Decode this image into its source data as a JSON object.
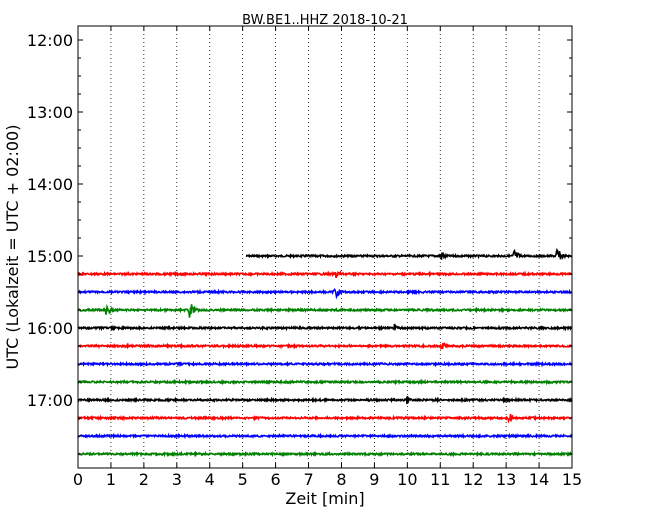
{
  "chart_data": {
    "type": "line",
    "title": "BW.BE1..HHZ 2018-10-21",
    "xlabel": "Zeit  [min]",
    "ylabel": "UTC (Lokalzeit = UTC + 02:00)",
    "xlim": [
      0,
      15
    ],
    "x_ticks": [
      "0",
      "1",
      "2",
      "3",
      "4",
      "5",
      "6",
      "7",
      "8",
      "9",
      "10",
      "11",
      "12",
      "13",
      "14",
      "15"
    ],
    "y_ticks": [
      "12:00",
      "13:00",
      "14:00",
      "15:00",
      "16:00",
      "17:00"
    ],
    "grid": "vertical dotted",
    "line_colors": [
      "#000000",
      "#ff0000",
      "#0000ff",
      "#008000"
    ],
    "traces": [
      {
        "start": "15:00",
        "from_min": 5.1,
        "to_min": 15,
        "color": "#000000",
        "events": [
          {
            "min": 11.0,
            "amp": 7
          },
          {
            "min": 13.25,
            "amp": 8
          },
          {
            "min": 14.55,
            "amp": 9
          }
        ]
      },
      {
        "start": "15:15",
        "from_min": 0,
        "to_min": 15,
        "color": "#ff0000",
        "events": [
          {
            "min": 7.85,
            "amp": 6
          }
        ]
      },
      {
        "start": "15:30",
        "from_min": 0,
        "to_min": 15,
        "color": "#0000ff",
        "events": [
          {
            "min": 7.8,
            "amp": 8
          }
        ]
      },
      {
        "start": "15:45",
        "from_min": 0,
        "to_min": 15,
        "color": "#008000",
        "events": [
          {
            "min": 0.85,
            "amp": 10
          },
          {
            "min": 3.4,
            "amp": 10
          }
        ]
      },
      {
        "start": "16:00",
        "from_min": 0,
        "to_min": 15,
        "color": "#000000",
        "events": [
          {
            "min": 9.6,
            "amp": 5
          }
        ]
      },
      {
        "start": "16:15",
        "from_min": 0,
        "to_min": 15,
        "color": "#ff0000",
        "events": [
          {
            "min": 11.05,
            "amp": 5
          }
        ]
      },
      {
        "start": "16:30",
        "from_min": 0,
        "to_min": 15,
        "color": "#0000ff",
        "events": []
      },
      {
        "start": "16:45",
        "from_min": 0,
        "to_min": 15,
        "color": "#008000",
        "events": []
      },
      {
        "start": "17:00",
        "from_min": 0,
        "to_min": 15,
        "color": "#000000",
        "events": [
          {
            "min": 10.0,
            "amp": 5
          }
        ]
      },
      {
        "start": "17:15",
        "from_min": 0,
        "to_min": 15,
        "color": "#ff0000",
        "events": [
          {
            "min": 13.1,
            "amp": 6
          }
        ]
      },
      {
        "start": "17:30",
        "from_min": 0,
        "to_min": 15,
        "color": "#0000ff",
        "events": []
      },
      {
        "start": "17:45",
        "from_min": 0,
        "to_min": 15,
        "color": "#008000",
        "events": []
      }
    ]
  }
}
